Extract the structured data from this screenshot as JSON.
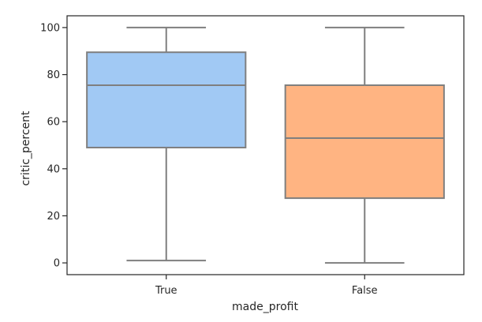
{
  "chart_data": {
    "type": "box",
    "title": "",
    "xlabel": "made_profit",
    "ylabel": "critic_percent",
    "categories": [
      "True",
      "False"
    ],
    "boxes": [
      {
        "category": "True",
        "min": 1,
        "q1": 49,
        "median": 75.5,
        "q3": 89.5,
        "max": 100,
        "color": "#a1c9f4"
      },
      {
        "category": "False",
        "min": 0,
        "q1": 27.5,
        "median": 53,
        "q3": 75.5,
        "max": 100,
        "color": "#ffb482"
      }
    ],
    "ylim": [
      -5,
      105
    ],
    "yticks": [
      0,
      20,
      40,
      60,
      80,
      100
    ],
    "grid": false,
    "legend": false,
    "line_color": "#7f7f7f"
  }
}
